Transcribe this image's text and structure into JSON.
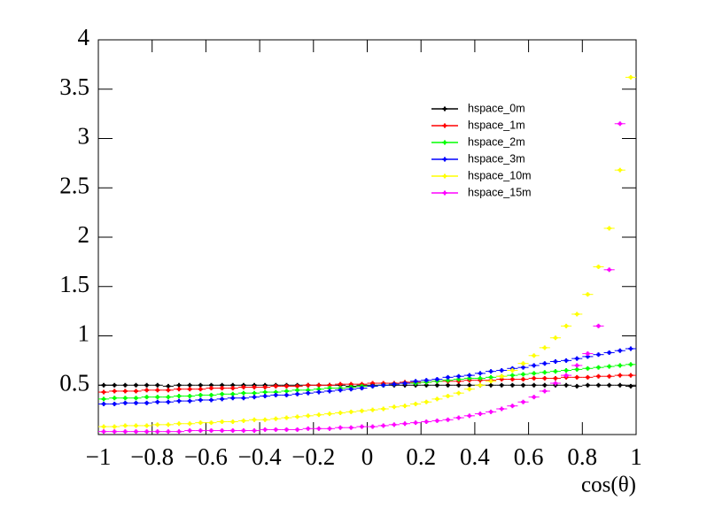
{
  "chart_data": {
    "type": "scatter",
    "x_label": "cos(θ)",
    "x": [
      -0.98,
      -0.94,
      -0.9,
      -0.86,
      -0.82,
      -0.78,
      -0.74,
      -0.7,
      -0.66,
      -0.62,
      -0.58,
      -0.54,
      -0.5,
      -0.46,
      -0.42,
      -0.38,
      -0.34,
      -0.3,
      -0.26,
      -0.22,
      -0.18,
      -0.14,
      -0.1,
      -0.06,
      -0.02,
      0.02,
      0.06,
      0.1,
      0.14,
      0.18,
      0.22,
      0.26,
      0.3,
      0.34,
      0.38,
      0.42,
      0.46,
      0.5,
      0.54,
      0.58,
      0.62,
      0.66,
      0.7,
      0.74,
      0.78,
      0.82,
      0.86,
      0.9,
      0.94,
      0.98
    ],
    "series": [
      {
        "name": "hspace_0m",
        "color": "#000000",
        "values": [
          0.5,
          0.5,
          0.5,
          0.5,
          0.5,
          0.5,
          0.49,
          0.5,
          0.5,
          0.5,
          0.5,
          0.5,
          0.5,
          0.5,
          0.5,
          0.5,
          0.5,
          0.5,
          0.5,
          0.5,
          0.5,
          0.5,
          0.5,
          0.49,
          0.5,
          0.5,
          0.5,
          0.5,
          0.5,
          0.5,
          0.5,
          0.5,
          0.5,
          0.5,
          0.5,
          0.5,
          0.5,
          0.5,
          0.5,
          0.5,
          0.5,
          0.5,
          0.5,
          0.5,
          0.49,
          0.5,
          0.5,
          0.5,
          0.5,
          0.49
        ]
      },
      {
        "name": "hspace_1m",
        "color": "#ff0000",
        "values": [
          0.43,
          0.44,
          0.44,
          0.44,
          0.45,
          0.45,
          0.45,
          0.46,
          0.46,
          0.46,
          0.47,
          0.47,
          0.47,
          0.48,
          0.48,
          0.48,
          0.49,
          0.49,
          0.49,
          0.5,
          0.5,
          0.5,
          0.51,
          0.51,
          0.51,
          0.52,
          0.52,
          0.52,
          0.53,
          0.53,
          0.53,
          0.54,
          0.54,
          0.54,
          0.55,
          0.55,
          0.55,
          0.56,
          0.56,
          0.56,
          0.57,
          0.57,
          0.57,
          0.58,
          0.58,
          0.58,
          0.59,
          0.59,
          0.6,
          0.6
        ]
      },
      {
        "name": "hspace_2m",
        "color": "#00ff00",
        "values": [
          0.36,
          0.37,
          0.37,
          0.37,
          0.38,
          0.38,
          0.38,
          0.39,
          0.39,
          0.4,
          0.4,
          0.41,
          0.41,
          0.42,
          0.42,
          0.43,
          0.43,
          0.44,
          0.45,
          0.45,
          0.46,
          0.47,
          0.47,
          0.48,
          0.49,
          0.49,
          0.5,
          0.51,
          0.52,
          0.52,
          0.53,
          0.54,
          0.55,
          0.56,
          0.57,
          0.57,
          0.58,
          0.59,
          0.6,
          0.61,
          0.62,
          0.63,
          0.64,
          0.65,
          0.66,
          0.67,
          0.68,
          0.69,
          0.7,
          0.71
        ]
      },
      {
        "name": "hspace_3m",
        "color": "#0000ff",
        "values": [
          0.31,
          0.31,
          0.32,
          0.32,
          0.32,
          0.33,
          0.33,
          0.34,
          0.34,
          0.35,
          0.35,
          0.36,
          0.37,
          0.37,
          0.38,
          0.39,
          0.4,
          0.4,
          0.41,
          0.42,
          0.43,
          0.44,
          0.45,
          0.46,
          0.47,
          0.49,
          0.5,
          0.51,
          0.52,
          0.54,
          0.55,
          0.56,
          0.58,
          0.59,
          0.6,
          0.62,
          0.64,
          0.65,
          0.67,
          0.68,
          0.7,
          0.72,
          0.74,
          0.75,
          0.77,
          0.79,
          0.81,
          0.83,
          0.85,
          0.87
        ]
      },
      {
        "name": "hspace_10m",
        "color": "#ffff00",
        "values": [
          0.08,
          0.08,
          0.09,
          0.09,
          0.09,
          0.1,
          0.1,
          0.11,
          0.11,
          0.12,
          0.12,
          0.13,
          0.13,
          0.14,
          0.15,
          0.15,
          0.16,
          0.17,
          0.18,
          0.19,
          0.2,
          0.21,
          0.22,
          0.23,
          0.24,
          0.25,
          0.26,
          0.28,
          0.29,
          0.31,
          0.33,
          0.36,
          0.39,
          0.42,
          0.46,
          0.5,
          0.54,
          0.59,
          0.65,
          0.72,
          0.8,
          0.88,
          0.98,
          1.1,
          1.22,
          1.42,
          1.7,
          2.09,
          2.68,
          3.62
        ]
      },
      {
        "name": "hspace_15m",
        "color": "#ff00ff",
        "values": [
          0.03,
          0.03,
          0.03,
          0.03,
          0.03,
          0.03,
          0.03,
          0.03,
          0.04,
          0.04,
          0.04,
          0.04,
          0.04,
          0.04,
          0.04,
          0.05,
          0.05,
          0.05,
          0.05,
          0.06,
          0.06,
          0.06,
          0.07,
          0.07,
          0.08,
          0.08,
          0.09,
          0.1,
          0.11,
          0.12,
          0.13,
          0.14,
          0.15,
          0.17,
          0.19,
          0.21,
          0.23,
          0.26,
          0.29,
          0.33,
          0.38,
          0.44,
          0.52,
          0.6,
          0.7,
          0.82,
          1.1,
          1.67,
          3.15,
          null
        ]
      }
    ],
    "xlim": [
      -1,
      1
    ],
    "xticks": [
      {
        "value": -1,
        "label": "−1"
      },
      {
        "value": -0.8,
        "label": "−0.8"
      },
      {
        "value": -0.6,
        "label": "−0.6"
      },
      {
        "value": -0.4,
        "label": "−0.4"
      },
      {
        "value": -0.2,
        "label": "−0.2"
      },
      0,
      0.2,
      0.4,
      0.6,
      0.8,
      1
    ],
    "ylim": [
      0,
      4
    ],
    "yticks": [
      0.5,
      1,
      1.5,
      2,
      2.5,
      3,
      3.5,
      4
    ],
    "bin_width": 0.04,
    "legend": "upper right"
  }
}
